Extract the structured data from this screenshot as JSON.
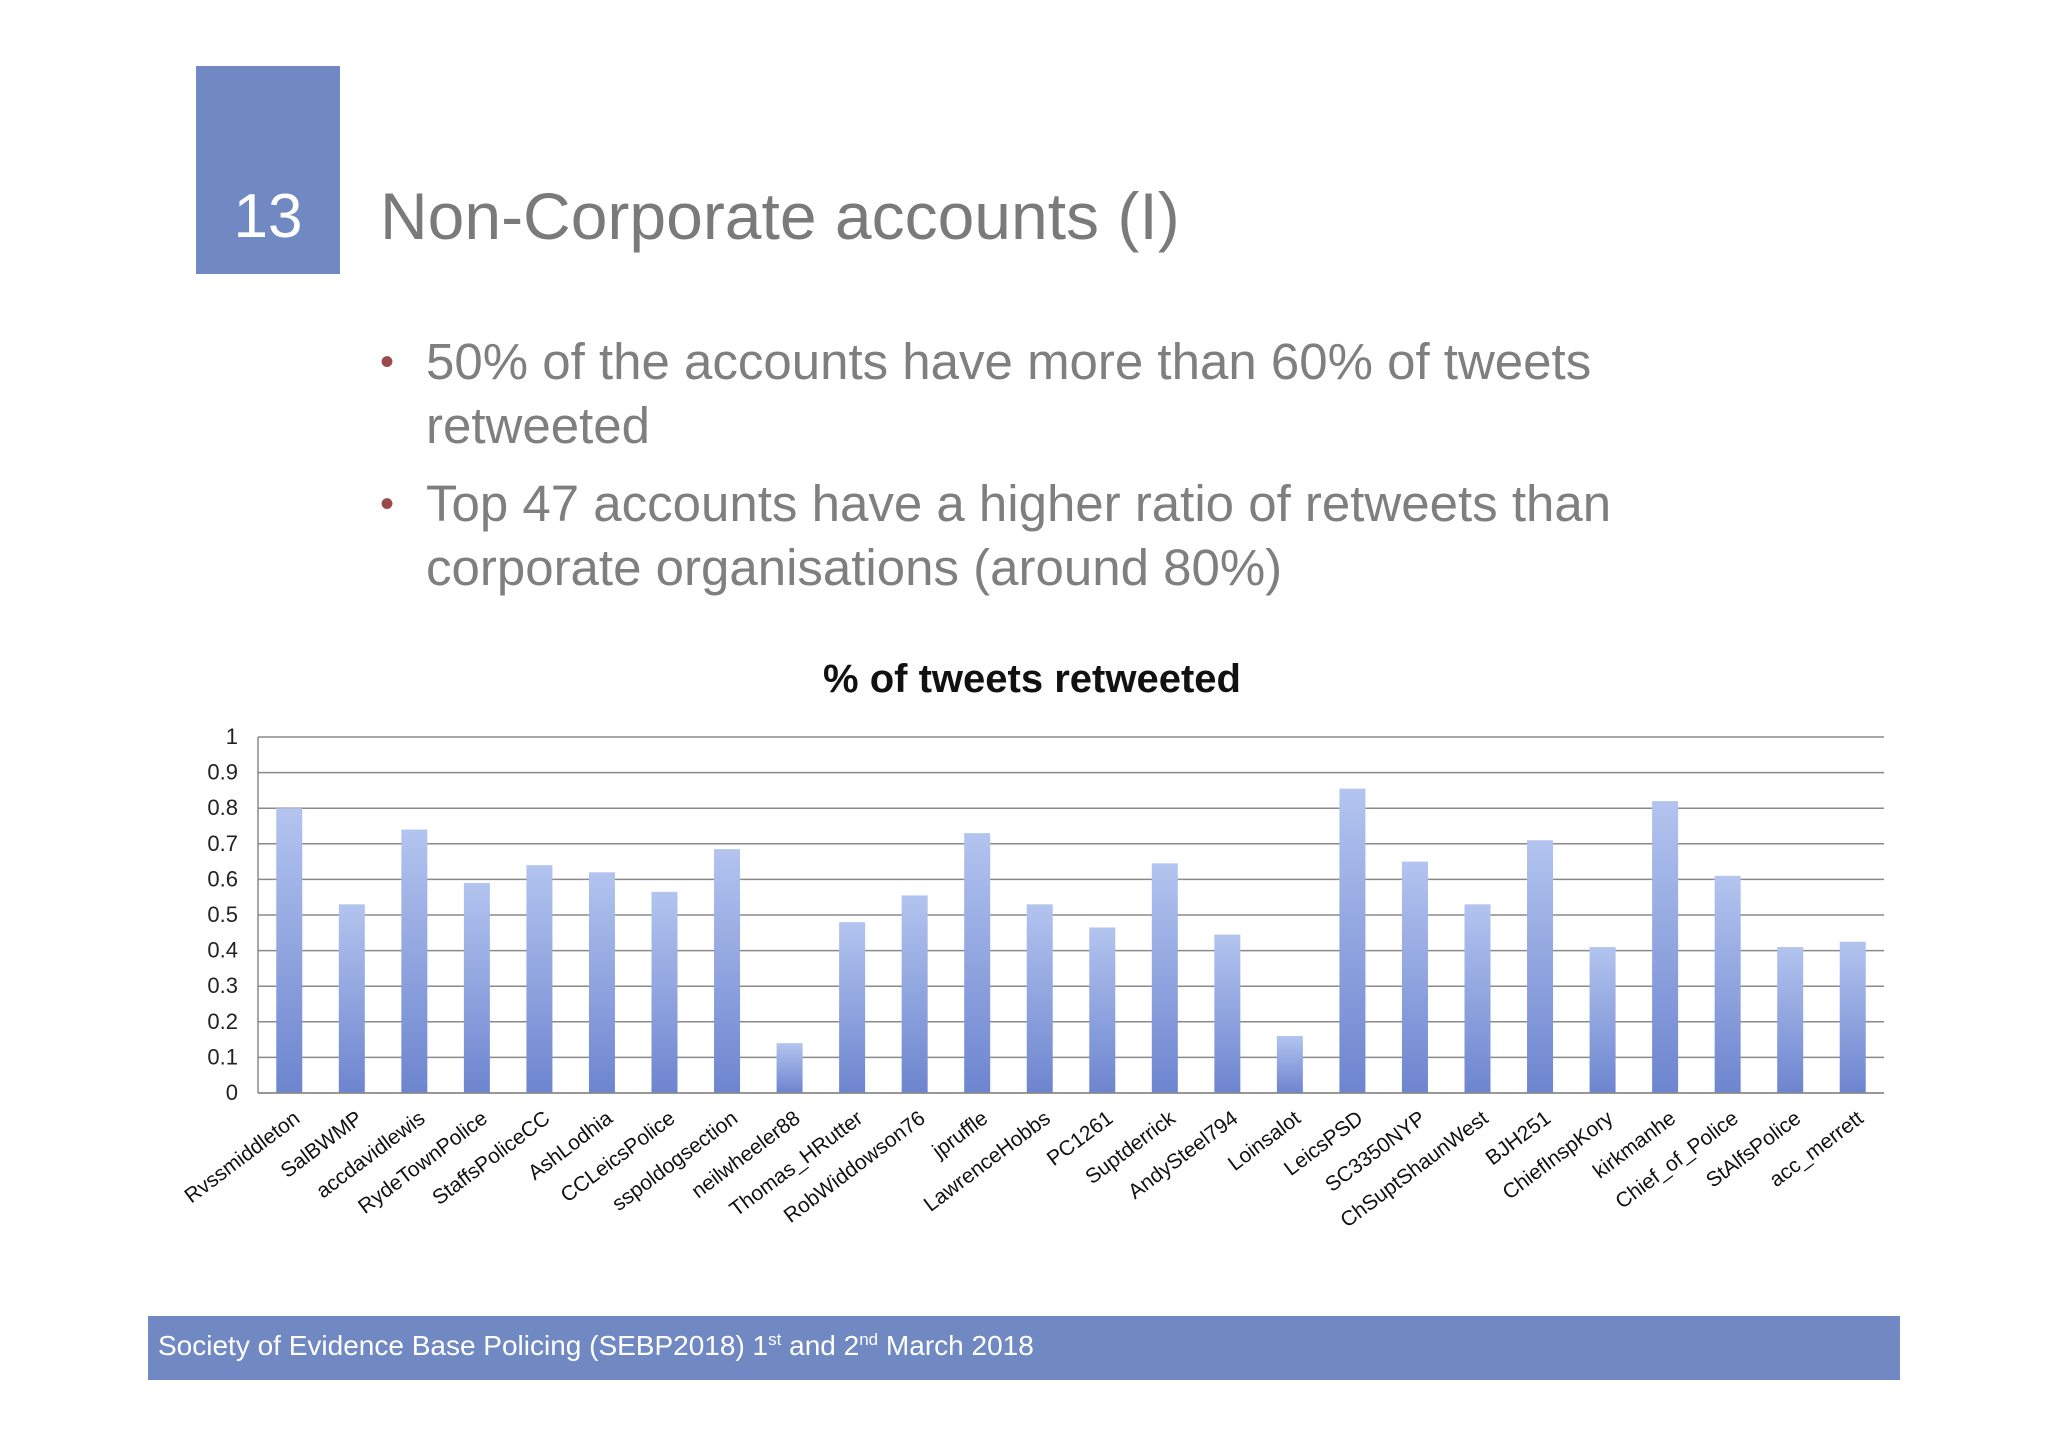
{
  "slide": {
    "number": "13",
    "title": "Non-Corporate accounts (I)"
  },
  "bullets": [
    "50% of the accounts have more than 60% of tweets retweeted",
    "Top 47 accounts have a higher ratio of retweets than corporate organisations (around 80%)"
  ],
  "bullet_glyph": "•",
  "colors": {
    "accent": "#7189c3",
    "bar_top": "#b3c4ef",
    "bar_bottom": "#6d85cf",
    "bullet": "#9b4a4a",
    "text_grey": "#7f7f7f"
  },
  "chart_data": {
    "type": "bar",
    "title": "% of tweets retweeted",
    "xlabel": "",
    "ylabel": "",
    "ylim": [
      0,
      1
    ],
    "yticks": [
      "0",
      "0.1",
      "0.2",
      "0.3",
      "0.4",
      "0.5",
      "0.6",
      "0.7",
      "0.8",
      "0.9",
      "1"
    ],
    "grid": true,
    "legend": "none",
    "categories": [
      "Rvssmiddleton",
      "SalBWMP",
      "accdavidlewis",
      "RydeTownPolice",
      "StaffsPoliceCC",
      "AshLodhia",
      "CCLeicsPolice",
      "sspoldogsection",
      "neilwheeler88",
      "Thomas_HRutter",
      "RobWiddowson76",
      "jpruffle",
      "LawrenceHobbs",
      "PC1261",
      "Suptderrick",
      "AndySteel794",
      "Loinsalot",
      "LeicsPSD",
      "SC3350NYP",
      "ChSuptShaunWest",
      "BJH251",
      "ChiefInspKory",
      "kirkmanhe",
      "Chief_of_Police",
      "StAlfsPolice",
      "acc_merrett"
    ],
    "values": [
      0.8,
      0.53,
      0.74,
      0.59,
      0.64,
      0.62,
      0.565,
      0.685,
      0.14,
      0.48,
      0.555,
      0.73,
      0.53,
      0.465,
      0.645,
      0.445,
      0.16,
      0.855,
      0.65,
      0.53,
      0.71,
      0.41,
      0.82,
      0.61,
      0.41,
      0.425
    ]
  },
  "footer": {
    "prefix": "Society of Evidence Base Policing (SEBP2018) 1",
    "sup1": "st",
    "middle": " and 2",
    "sup2": "nd",
    "suffix": " March 2018"
  }
}
